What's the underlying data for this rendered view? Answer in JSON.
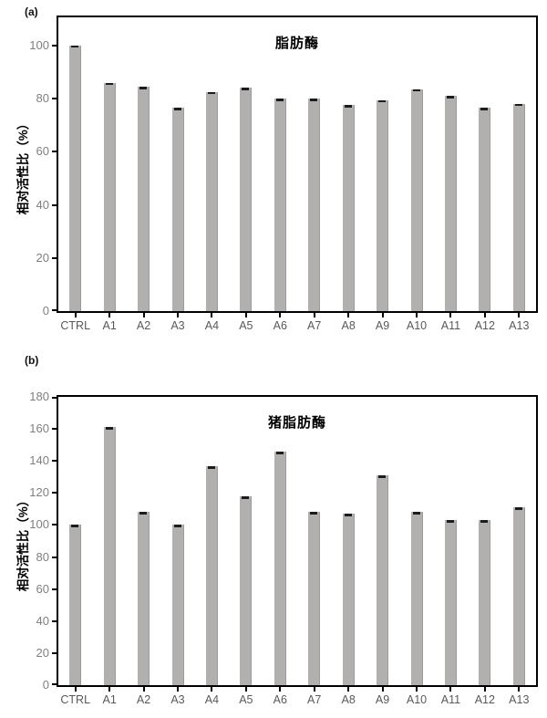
{
  "figure": {
    "background": "#ffffff",
    "colors": {
      "bar_fill": "#b2afaf",
      "bar_edge": "#9d9a9a",
      "error_cap": "#1c1c1c",
      "axis": "#000000",
      "y_tick_label": "#7f7f7f",
      "x_tick_label": "#595959",
      "title": "#000000"
    }
  },
  "chart_data": [
    {
      "type": "bar",
      "panel_label": "(a)",
      "title": "脂肪酶",
      "ylabel": "相对活性比（%）",
      "xlabel": "",
      "categories": [
        "CTRL",
        "A1",
        "A2",
        "A3",
        "A4",
        "A5",
        "A6",
        "A7",
        "A8",
        "A9",
        "A10",
        "A11",
        "A12",
        "A13"
      ],
      "values": [
        100,
        86,
        84.5,
        76.5,
        82.5,
        84,
        80,
        80,
        77.5,
        79.5,
        83.5,
        81,
        76.5,
        78
      ],
      "yticks": [
        0,
        20,
        40,
        60,
        80,
        100
      ],
      "ylim": [
        0,
        110.6
      ],
      "error_caps": true,
      "grid": false,
      "legend": "none"
    },
    {
      "type": "bar",
      "panel_label": "(b)",
      "title": "猪脂肪酶",
      "ylabel": "相对活性比（%）",
      "xlabel": "",
      "categories": [
        "CTRL",
        "A1",
        "A2",
        "A3",
        "A4",
        "A5",
        "A6",
        "A7",
        "A8",
        "A9",
        "A10",
        "A11",
        "A12",
        "A13"
      ],
      "values": [
        100,
        161,
        108,
        100,
        137,
        118,
        146,
        108,
        107,
        131,
        108,
        103,
        103,
        111
      ],
      "yticks": [
        0,
        20,
        40,
        60,
        80,
        100,
        120,
        140,
        160,
        180
      ],
      "ylim": [
        0,
        180
      ],
      "error_caps": true,
      "grid": false,
      "legend": "none"
    }
  ]
}
